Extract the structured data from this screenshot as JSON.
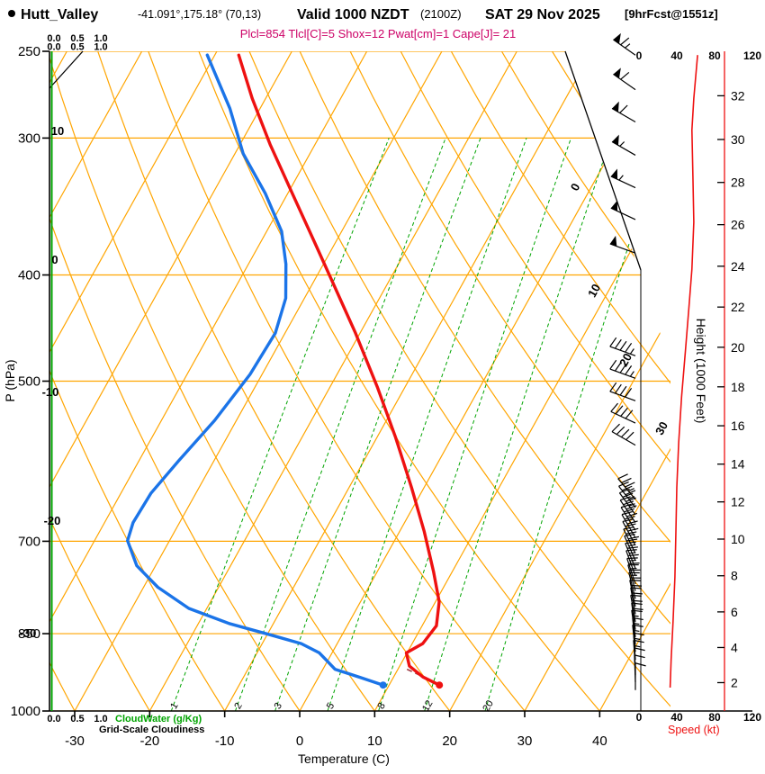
{
  "header": {
    "station": "Hutt_Valley",
    "coords": "-41.091°,175.18° (70,13)",
    "valid_time": "Valid 1000 NZDT",
    "valid_z": "(2100Z)",
    "valid_date": "SAT 29 Nov 2025",
    "forecast_tag": "[9hrFcst@1551z]",
    "indices": "Plcl=854 Tlcl[C]=5 Shox=12 Pwat[cm]=1 Cape[J]= 21"
  },
  "axes": {
    "pressure_title": "P (hPa)",
    "temperature_title": "Temperature (C)",
    "height_title": "Height (1000 Feet)",
    "speed_title": "Speed (kt)",
    "cloudwater_title": "CloudWater (g/Kg)",
    "cloudiness_title": "Grid-Scale Cloudiness",
    "pressure_ticks": [
      250,
      300,
      400,
      500,
      700,
      850,
      1000
    ],
    "temperature_ticks": [
      -30,
      -20,
      -10,
      0,
      10,
      20,
      30,
      40
    ],
    "height_ticks": [
      2,
      4,
      6,
      8,
      10,
      12,
      14,
      16,
      18,
      20,
      22,
      24,
      26,
      28,
      30,
      32
    ],
    "speed_ticks": [
      0,
      40,
      80,
      120
    ],
    "cloud_scale_ticks": [
      "0.0",
      "0.5",
      "1.0"
    ]
  },
  "chart_data": {
    "type": "skewt-log-p-sounding",
    "pressure_axis_hpa": [
      1000,
      250
    ],
    "surface_temp_axis_c": [
      -33,
      45
    ],
    "speed_axis_kt": [
      0,
      120
    ],
    "isobar_lines_hpa": [
      250,
      300,
      400,
      500,
      700,
      850,
      1000
    ],
    "isotherm_labels_left_c": [
      10,
      0,
      -10,
      -20,
      -30
    ],
    "isotherm_labels_right_c": [
      0,
      10,
      20,
      30
    ],
    "mixing_ratio_lines_gkg": [
      1,
      2,
      3,
      5,
      8,
      12,
      20
    ],
    "temperature_trace_c_by_hpa": [
      [
        252,
        -56.8
      ],
      [
        276,
        -51.8
      ],
      [
        304,
        -46
      ],
      [
        337,
        -39.4
      ],
      [
        374,
        -32.7
      ],
      [
        407,
        -27.3
      ],
      [
        452,
        -20.6
      ],
      [
        507,
        -13.6
      ],
      [
        563,
        -7.5
      ],
      [
        625,
        -1.7
      ],
      [
        686,
        3.3
      ],
      [
        746,
        7.5
      ],
      [
        795,
        10.5
      ],
      [
        836,
        11.9
      ],
      [
        868,
        11.4
      ],
      [
        885,
        9.9
      ],
      [
        910,
        11.3
      ],
      [
        931,
        13.9
      ],
      [
        947,
        16.7
      ]
    ],
    "dewpoint_trace_c_by_hpa": [
      [
        252,
        -61
      ],
      [
        282,
        -54
      ],
      [
        310,
        -48.9
      ],
      [
        337,
        -43
      ],
      [
        365,
        -38
      ],
      [
        391,
        -35
      ],
      [
        420,
        -32.5
      ],
      [
        452,
        -31.3
      ],
      [
        493,
        -31.6
      ],
      [
        543,
        -32.9
      ],
      [
        591,
        -34.7
      ],
      [
        633,
        -36
      ],
      [
        673,
        -36.2
      ],
      [
        699,
        -35.6
      ],
      [
        737,
        -32.5
      ],
      [
        771,
        -28.1
      ],
      [
        806,
        -22.4
      ],
      [
        832,
        -15.9
      ],
      [
        852,
        -9.6
      ],
      [
        868,
        -4.8
      ],
      [
        885,
        -1.7
      ],
      [
        898,
        -0.3
      ],
      [
        916,
        1.6
      ],
      [
        932,
        5.6
      ],
      [
        947,
        9.2
      ]
    ],
    "parcel_segment_c_by_hpa": [
      [
        916,
        11.2
      ],
      [
        948,
        17.1
      ]
    ],
    "wind_speed_profile_kt_by_hpa": [
      [
        952,
        33
      ],
      [
        898,
        34
      ],
      [
        830,
        36
      ],
      [
        755,
        38
      ],
      [
        686,
        39
      ],
      [
        625,
        40
      ],
      [
        569,
        42
      ],
      [
        517,
        45
      ],
      [
        470,
        49
      ],
      [
        427,
        53
      ],
      [
        395,
        56
      ],
      [
        358,
        58
      ],
      [
        325,
        57
      ],
      [
        295,
        56
      ],
      [
        276,
        58
      ],
      [
        252,
        62
      ]
    ],
    "wind_barbs_p_spd_dir": [
      [
        252,
        65,
        305
      ],
      [
        271,
        60,
        305
      ],
      [
        290,
        60,
        300
      ],
      [
        311,
        55,
        300
      ],
      [
        333,
        55,
        295
      ],
      [
        356,
        50,
        295
      ],
      [
        382,
        50,
        290
      ],
      [
        474,
        45,
        290
      ],
      [
        497,
        45,
        290
      ],
      [
        521,
        40,
        290
      ],
      [
        546,
        40,
        295
      ],
      [
        572,
        40,
        300
      ],
      [
        641,
        35,
        320
      ],
      [
        652,
        35,
        322
      ],
      [
        662,
        35,
        324
      ],
      [
        673,
        30,
        326
      ],
      [
        684,
        30,
        328
      ],
      [
        695,
        30,
        330
      ],
      [
        706,
        30,
        332
      ],
      [
        718,
        30,
        334
      ],
      [
        729,
        25,
        336
      ],
      [
        741,
        25,
        338
      ],
      [
        753,
        25,
        340
      ],
      [
        766,
        25,
        342
      ],
      [
        777,
        25,
        344
      ],
      [
        790,
        20,
        346
      ],
      [
        803,
        20,
        348
      ],
      [
        816,
        20,
        350
      ],
      [
        829,
        20,
        350
      ],
      [
        843,
        20,
        352
      ],
      [
        856,
        15,
        352
      ],
      [
        870,
        15,
        354
      ],
      [
        883,
        15,
        354
      ],
      [
        898,
        15,
        356
      ],
      [
        912,
        15,
        356
      ],
      [
        927,
        10,
        358
      ],
      [
        941,
        10,
        358
      ],
      [
        957,
        10,
        360
      ]
    ]
  },
  "colors": {
    "grid_orange": "#FFA500",
    "mixing_green": "#00A400",
    "temperature_red": "#EE1111",
    "dewpoint_blue": "#1B74E8",
    "parcel_maroon": "#A04048",
    "indices_magenta": "#CC0066",
    "speed_red": "#EE1111",
    "cloud_green": "#00A400",
    "isotherm_label_orange": "#E89B00",
    "barb_black": "#000000"
  }
}
